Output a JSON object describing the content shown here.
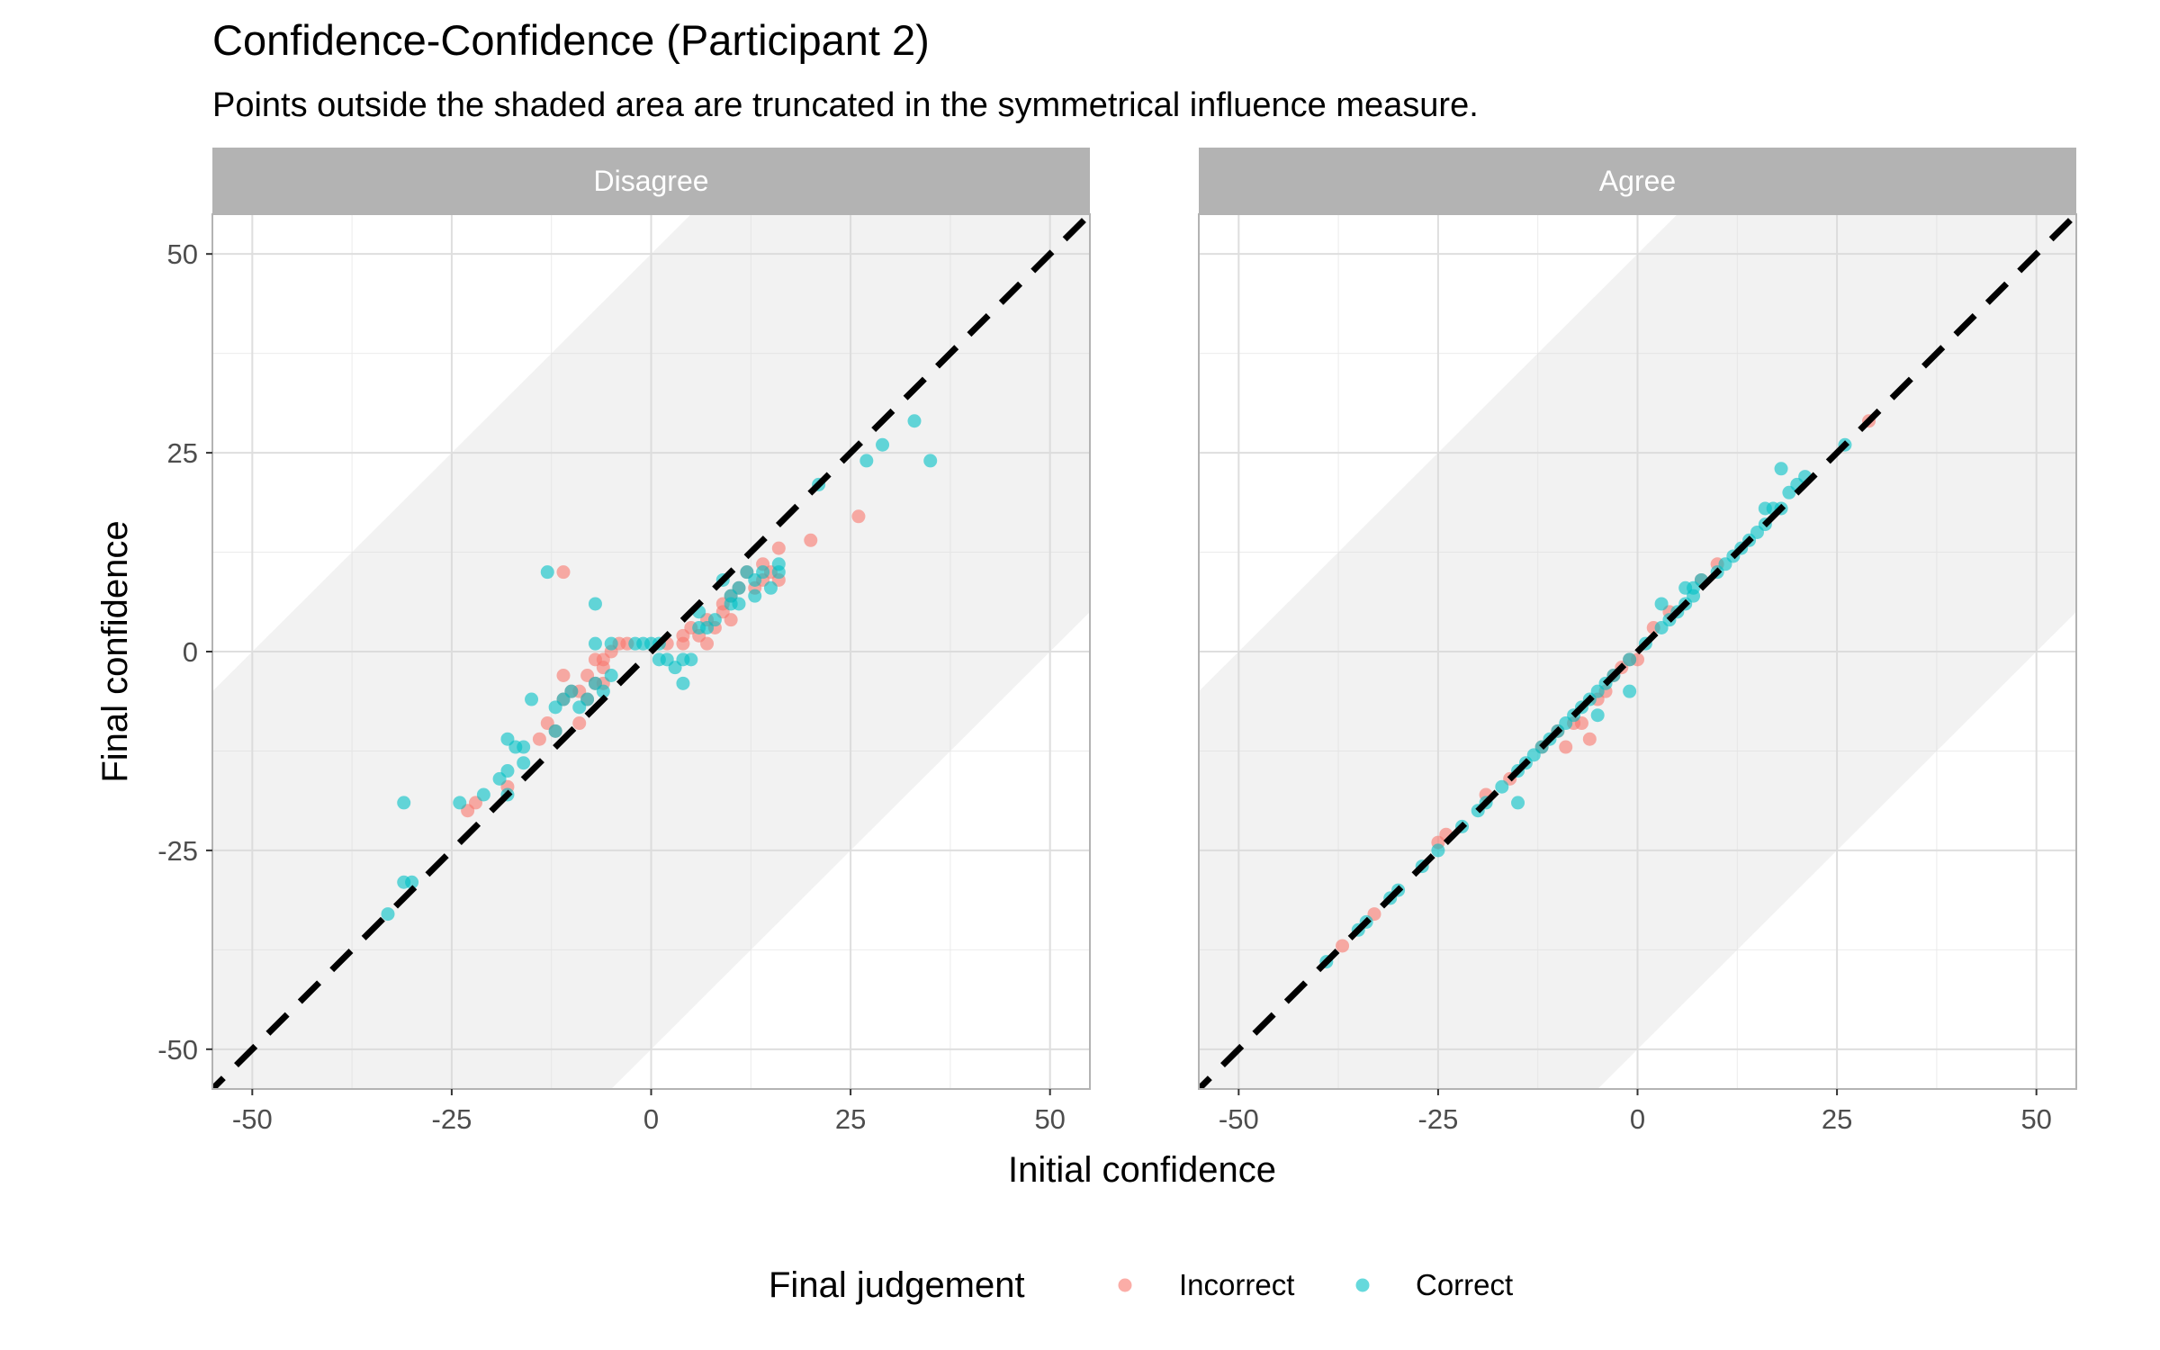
{
  "chart_data": {
    "type": "scatter",
    "title": "Confidence-Confidence (Participant 2)",
    "subtitle": "Points outside the shaded area are truncated in the symmetrical influence measure.",
    "xlabel": "Initial confidence",
    "ylabel": "Final confidence",
    "xlim": [
      -55,
      55
    ],
    "ylim": [
      -55,
      55
    ],
    "x_ticks": [
      -50,
      -25,
      0,
      25,
      50
    ],
    "y_ticks": [
      -50,
      -25,
      0,
      25,
      50
    ],
    "x_tick_labels": [
      "-50",
      "-25",
      "0",
      "25",
      "50"
    ],
    "y_tick_labels": [
      "-50",
      "-25",
      "0",
      "25",
      "50"
    ],
    "grid": true,
    "reference_line": {
      "slope": 1,
      "intercept": 0,
      "style": "dashed",
      "color": "#000000"
    },
    "shaded_region": "between y = x - 50 and y = x + 50",
    "legend": {
      "title": "Final judgement",
      "placement": "bottom",
      "entries": [
        {
          "label": "Incorrect",
          "color": "#F8766D"
        },
        {
          "label": "Correct",
          "color": "#00BFC4"
        }
      ]
    },
    "panels": [
      {
        "name": "Disagree",
        "series": [
          {
            "name": "Incorrect",
            "color": "#F8766D",
            "points": [
              [
                -23,
                -20
              ],
              [
                -22,
                -19
              ],
              [
                -18,
                -17
              ],
              [
                -14,
                -11
              ],
              [
                -13,
                -9
              ],
              [
                -12,
                -10
              ],
              [
                -11,
                -6
              ],
              [
                -11,
                -3
              ],
              [
                -10,
                -5
              ],
              [
                -9,
                -9
              ],
              [
                -9,
                -5
              ],
              [
                -8,
                -6
              ],
              [
                -8,
                -3
              ],
              [
                -7,
                -1
              ],
              [
                -7,
                -4
              ],
              [
                -6,
                -2
              ],
              [
                -6,
                -4
              ],
              [
                -6,
                -1
              ],
              [
                -5,
                0
              ],
              [
                -4,
                1
              ],
              [
                -3,
                1
              ],
              [
                -11,
                10
              ],
              [
                2,
                1
              ],
              [
                4,
                2
              ],
              [
                4,
                1
              ],
              [
                5,
                3
              ],
              [
                6,
                2
              ],
              [
                7,
                1
              ],
              [
                7,
                4
              ],
              [
                8,
                3
              ],
              [
                9,
                5
              ],
              [
                9,
                6
              ],
              [
                10,
                4
              ],
              [
                10,
                7
              ],
              [
                11,
                8
              ],
              [
                12,
                10
              ],
              [
                13,
                8
              ],
              [
                14,
                9
              ],
              [
                14,
                11
              ],
              [
                15,
                10
              ],
              [
                16,
                13
              ],
              [
                16,
                9
              ],
              [
                20,
                14
              ],
              [
                26,
                17
              ]
            ]
          },
          {
            "name": "Correct",
            "color": "#00BFC4",
            "points": [
              [
                -33,
                -33
              ],
              [
                -31,
                -19
              ],
              [
                -31,
                -29
              ],
              [
                -30,
                -29
              ],
              [
                -24,
                -19
              ],
              [
                -21,
                -18
              ],
              [
                -19,
                -16
              ],
              [
                -18,
                -18
              ],
              [
                -18,
                -15
              ],
              [
                -18,
                -11
              ],
              [
                -17,
                -12
              ],
              [
                -16,
                -14
              ],
              [
                -16,
                -12
              ],
              [
                -15,
                -6
              ],
              [
                -13,
                10
              ],
              [
                -12,
                -7
              ],
              [
                -12,
                -10
              ],
              [
                -11,
                -6
              ],
              [
                -10,
                -5
              ],
              [
                -9,
                -7
              ],
              [
                -8,
                -6
              ],
              [
                -7,
                -4
              ],
              [
                -7,
                1
              ],
              [
                -7,
                6
              ],
              [
                -6,
                -5
              ],
              [
                -5,
                -3
              ],
              [
                -5,
                1
              ],
              [
                -2,
                1
              ],
              [
                -1,
                1
              ],
              [
                0,
                1
              ],
              [
                1,
                -1
              ],
              [
                1,
                1
              ],
              [
                2,
                -1
              ],
              [
                3,
                -2
              ],
              [
                4,
                -1
              ],
              [
                4,
                -4
              ],
              [
                5,
                -1
              ],
              [
                6,
                3
              ],
              [
                6,
                5
              ],
              [
                7,
                3
              ],
              [
                8,
                4
              ],
              [
                9,
                9
              ],
              [
                10,
                7
              ],
              [
                10,
                6
              ],
              [
                11,
                6
              ],
              [
                11,
                8
              ],
              [
                12,
                10
              ],
              [
                13,
                7
              ],
              [
                13,
                9
              ],
              [
                14,
                10
              ],
              [
                15,
                8
              ],
              [
                16,
                11
              ],
              [
                16,
                10
              ],
              [
                21,
                21
              ],
              [
                27,
                24
              ],
              [
                29,
                26
              ],
              [
                33,
                29
              ],
              [
                35,
                24
              ]
            ]
          }
        ]
      },
      {
        "name": "Agree",
        "series": [
          {
            "name": "Incorrect",
            "color": "#F8766D",
            "points": [
              [
                -37,
                -37
              ],
              [
                -33,
                -33
              ],
              [
                -25,
                -24
              ],
              [
                -24,
                -23
              ],
              [
                -19,
                -18
              ],
              [
                -16,
                -16
              ],
              [
                -12,
                -12
              ],
              [
                -10,
                -10
              ],
              [
                -9,
                -12
              ],
              [
                -8,
                -9
              ],
              [
                -7,
                -9
              ],
              [
                -6,
                -11
              ],
              [
                -5,
                -6
              ],
              [
                -4,
                -5
              ],
              [
                -3,
                -3
              ],
              [
                -2,
                -2
              ],
              [
                -1,
                -1
              ],
              [
                0,
                -1
              ],
              [
                2,
                3
              ],
              [
                4,
                5
              ],
              [
                8,
                9
              ],
              [
                10,
                11
              ],
              [
                29,
                29
              ]
            ]
          },
          {
            "name": "Correct",
            "color": "#00BFC4",
            "points": [
              [
                -39,
                -39
              ],
              [
                -35,
                -35
              ],
              [
                -34,
                -34
              ],
              [
                -31,
                -31
              ],
              [
                -30,
                -30
              ],
              [
                -27,
                -27
              ],
              [
                -25,
                -25
              ],
              [
                -22,
                -22
              ],
              [
                -20,
                -20
              ],
              [
                -19,
                -19
              ],
              [
                -17,
                -17
              ],
              [
                -15,
                -15
              ],
              [
                -15,
                -19
              ],
              [
                -14,
                -14
              ],
              [
                -13,
                -13
              ],
              [
                -12,
                -12
              ],
              [
                -11,
                -11
              ],
              [
                -10,
                -10
              ],
              [
                -9,
                -9
              ],
              [
                -8,
                -8
              ],
              [
                -7,
                -7
              ],
              [
                -6,
                -6
              ],
              [
                -5,
                -5
              ],
              [
                -5,
                -8
              ],
              [
                -4,
                -4
              ],
              [
                -3,
                -3
              ],
              [
                -1,
                -1
              ],
              [
                -1,
                -5
              ],
              [
                1,
                1
              ],
              [
                3,
                3
              ],
              [
                3,
                6
              ],
              [
                4,
                4
              ],
              [
                5,
                5
              ],
              [
                6,
                6
              ],
              [
                6,
                8
              ],
              [
                7,
                7
              ],
              [
                7,
                8
              ],
              [
                8,
                9
              ],
              [
                10,
                10
              ],
              [
                11,
                11
              ],
              [
                12,
                12
              ],
              [
                13,
                13
              ],
              [
                14,
                14
              ],
              [
                15,
                15
              ],
              [
                16,
                16
              ],
              [
                16,
                18
              ],
              [
                17,
                18
              ],
              [
                18,
                18
              ],
              [
                19,
                20
              ],
              [
                20,
                21
              ],
              [
                21,
                22
              ],
              [
                26,
                26
              ],
              [
                18,
                23
              ]
            ]
          }
        ]
      }
    ]
  }
}
